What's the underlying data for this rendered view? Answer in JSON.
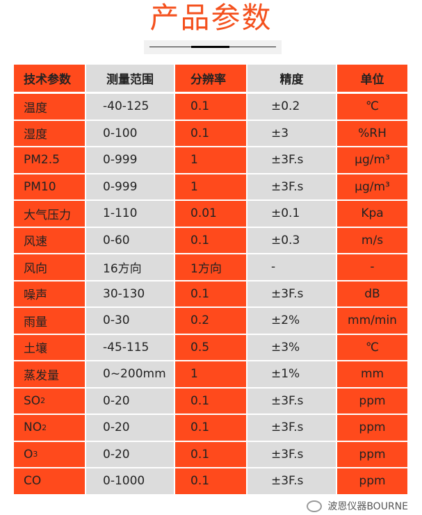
{
  "title": "产品参数",
  "headers": [
    "技术参数",
    "测量范围",
    "分辨率",
    "精度",
    "单位"
  ],
  "rows": [
    {
      "param": "温度",
      "sub": "",
      "range": "-40-125",
      "resolution": "0.1",
      "accuracy": "±0.2",
      "unit": "℃"
    },
    {
      "param": "湿度",
      "sub": "",
      "range": "0-100",
      "resolution": "0.1",
      "accuracy": "±3",
      "unit": "%RH"
    },
    {
      "param": "PM2.5",
      "sub": "",
      "range": "0-999",
      "resolution": "1",
      "accuracy": "±3F.s",
      "unit": "μg/m³"
    },
    {
      "param": "PM10",
      "sub": "",
      "range": "0-999",
      "resolution": "1",
      "accuracy": "±3F.s",
      "unit": "μg/m³"
    },
    {
      "param": "大气压力",
      "sub": "",
      "range": "1-110",
      "resolution": "0.01",
      "accuracy": "±0.1",
      "unit": "Kpa"
    },
    {
      "param": "风速",
      "sub": "",
      "range": "0-60",
      "resolution": "0.1",
      "accuracy": "±0.3",
      "unit": "m/s"
    },
    {
      "param": "风向",
      "sub": "",
      "range": "16方向",
      "resolution": "1方向",
      "accuracy": "-",
      "unit": "-"
    },
    {
      "param": "噪声",
      "sub": "",
      "range": "30-130",
      "resolution": "0.1",
      "accuracy": "±3F.s",
      "unit": "dB"
    },
    {
      "param": "雨量",
      "sub": "",
      "range": "0-30",
      "resolution": "0.2",
      "accuracy": "±2%",
      "unit": "mm/min"
    },
    {
      "param": "土壤",
      "sub": "",
      "range": "-45-115",
      "resolution": "0.5",
      "accuracy": "±3%",
      "unit": "℃"
    },
    {
      "param": "蒸发量",
      "sub": "",
      "range": "0~200mm",
      "resolution": "1",
      "accuracy": "±1%",
      "unit": "mm"
    },
    {
      "param": "SO",
      "sub": "2",
      "range": "0-20",
      "resolution": "0.1",
      "accuracy": "±3F.s",
      "unit": "ppm"
    },
    {
      "param": "NO",
      "sub": "2",
      "range": "0-20",
      "resolution": "0.1",
      "accuracy": "±3F.s",
      "unit": "ppm"
    },
    {
      "param": "O",
      "sub": "3",
      "range": "0-20",
      "resolution": "0.1",
      "accuracy": "±3F.s",
      "unit": "ppm"
    },
    {
      "param": "CO",
      "sub": "",
      "range": "0-1000",
      "resolution": "0.1",
      "accuracy": "±3F.s",
      "unit": "ppm"
    }
  ],
  "watermark": "波恩仪器BOURNE",
  "colors": {
    "accent": "#ff4a1c",
    "gray": "#dcdcdc",
    "title": "#f4511e"
  }
}
